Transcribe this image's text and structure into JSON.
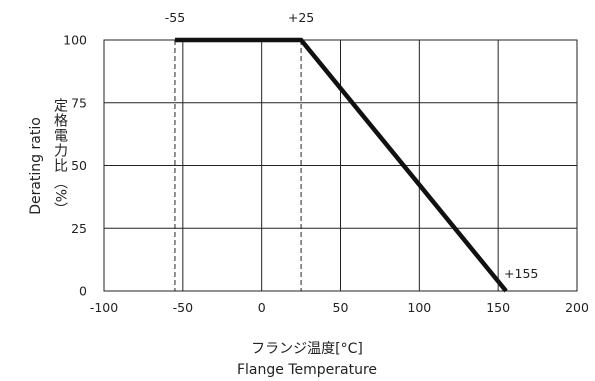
{
  "chart_data": {
    "type": "line",
    "xlabel": [
      "フランジ温度[°C]",
      "Flange Temperature"
    ],
    "ylabel": {
      "en": "Derating ratio",
      "jp": "定格電力比",
      "unit": "（%）"
    },
    "xlim": [
      -100,
      200
    ],
    "ylim": [
      0,
      100
    ],
    "xticks": [
      -100,
      -50,
      0,
      50,
      100,
      150,
      200
    ],
    "yticks": [
      0,
      25,
      50,
      75,
      100
    ],
    "grid": true,
    "series": [
      {
        "x": [
          -55,
          25,
          155
        ],
        "y": [
          100,
          100,
          0
        ],
        "color": "#111111"
      }
    ],
    "reference_lines": [
      {
        "x": -55,
        "label": "-55",
        "style": "dashed"
      },
      {
        "x": 25,
        "label": "+25",
        "style": "dashed"
      }
    ],
    "annotations": [
      {
        "x": 155,
        "y": 0,
        "text": "+155"
      }
    ]
  }
}
